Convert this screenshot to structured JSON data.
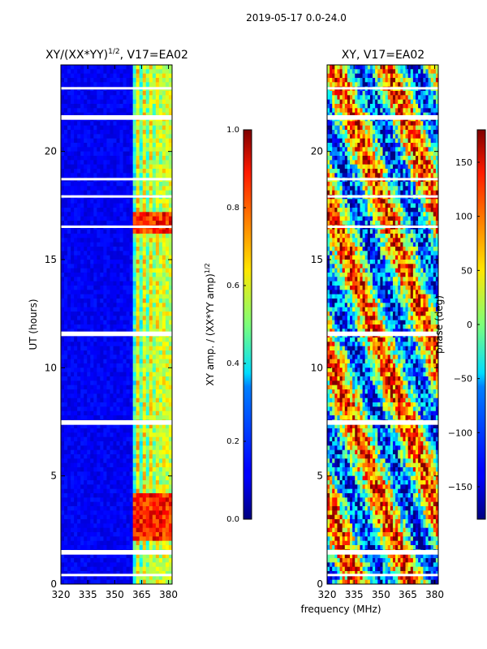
{
  "suptitle": "2019-05-17 0.0-24.0",
  "shared_xlabel": "frequency (MHz)",
  "chart_data": [
    {
      "type": "heatmap",
      "title": "XY/(XX*YY)^1/2, V17=EA02",
      "title_main": "XY/(XX*YY)",
      "title_exp": "1/2",
      "title_rest": ", V17=EA02",
      "xlabel": "",
      "ylabel": "UT (hours)",
      "xlim": [
        320,
        382
      ],
      "ylim": [
        0,
        24
      ],
      "xticks": [
        320,
        335,
        350,
        365,
        380
      ],
      "yticks": [
        0,
        5,
        10,
        15,
        20
      ],
      "colorbar": {
        "label": "XY amp. / (XX*YY amp)^1/2",
        "label_main": "XY amp. / (XX*YY amp)",
        "label_exp": "1/2",
        "range": [
          0.0,
          1.0
        ],
        "ticks": [
          "0.0",
          "0.2",
          "0.4",
          "0.6",
          "0.8",
          "1.0"
        ],
        "tick_values": [
          0.0,
          0.2,
          0.4,
          0.6,
          0.8,
          1.0
        ],
        "colormap": "jet"
      },
      "gaps_hours": [
        0.4,
        1.4,
        1.5,
        7.4,
        7.5,
        11.5,
        11.6,
        16.5,
        17.9,
        18.7,
        21.5,
        21.6,
        22.9
      ]
    },
    {
      "type": "heatmap",
      "title": "XY, V17=EA02",
      "xlabel": "frequency (MHz)",
      "ylabel": "",
      "xlim": [
        320,
        382
      ],
      "ylim": [
        0,
        24
      ],
      "xticks": [
        320,
        335,
        350,
        365,
        380
      ],
      "yticks": [
        0,
        5,
        10,
        15,
        20
      ],
      "colorbar": {
        "label": "phase (deg)",
        "range": [
          -180,
          180
        ],
        "ticks": [
          "150",
          "100",
          "50",
          "0",
          "−50",
          "−100",
          "−150"
        ],
        "tick_values": [
          150,
          100,
          50,
          0,
          -50,
          -100,
          -150
        ],
        "colormap": "jet"
      },
      "gaps_hours": [
        0.4,
        1.4,
        1.5,
        7.4,
        7.5,
        11.5,
        11.6,
        16.5,
        17.9,
        18.7,
        21.5,
        21.6,
        22.9
      ]
    }
  ]
}
